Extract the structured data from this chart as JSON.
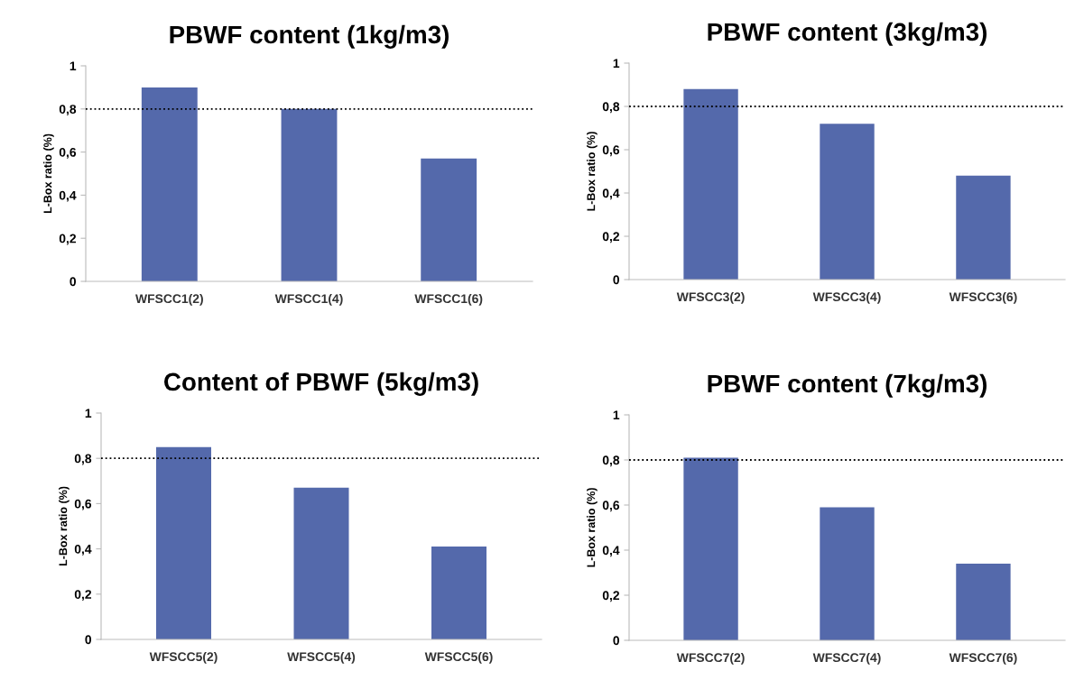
{
  "chart_data": [
    {
      "type": "bar",
      "title": "PBWF content (1kg/m3)",
      "ylabel": "L-Box ratio (%)",
      "categories": [
        "WFSCC1(2)",
        "WFSCC1(4)",
        "WFSCC1(6)"
      ],
      "values": [
        0.9,
        0.8,
        0.57
      ],
      "color": "#5469ab",
      "ylim": [
        0,
        1
      ],
      "yticks": [
        0,
        {
          "value": 0.2,
          "label": "0,2"
        },
        {
          "value": 0.4,
          "label": "0,4"
        },
        {
          "value": 0.6,
          "label": "0,6"
        },
        {
          "value": 0.8,
          "label": "0,8"
        },
        1
      ],
      "grid": false,
      "ref_lines": [
        {
          "axis": "y",
          "value": 0.8,
          "color": "#000000",
          "line_style": "dotted"
        }
      ]
    },
    {
      "type": "bar",
      "title": "PBWF content (3kg/m3)",
      "ylabel": "L-Box ratio (%)",
      "categories": [
        "WFSCC3(2)",
        "WFSCC3(4)",
        "WFSCC3(6)"
      ],
      "values": [
        0.88,
        0.72,
        0.48
      ],
      "color": "#5469ab",
      "ylim": [
        0,
        1
      ],
      "yticks": [
        0,
        {
          "value": 0.2,
          "label": "0,2"
        },
        {
          "value": 0.4,
          "label": "0,4"
        },
        {
          "value": 0.6,
          "label": "0,6"
        },
        {
          "value": 0.8,
          "label": "0,8"
        },
        1
      ],
      "grid": false,
      "ref_lines": [
        {
          "axis": "y",
          "value": 0.8,
          "color": "#000000",
          "line_style": "dotted"
        }
      ]
    },
    {
      "type": "bar",
      "title": "Content of PBWF (5kg/m3)",
      "ylabel": "L-Box ratio (%)",
      "categories": [
        "WFSCC5(2)",
        "WFSCC5(4)",
        "WFSCC5(6)"
      ],
      "values": [
        0.85,
        0.67,
        0.41
      ],
      "color": "#5469ab",
      "ylim": [
        0,
        1
      ],
      "yticks": [
        0,
        {
          "value": 0.2,
          "label": "0,2"
        },
        {
          "value": 0.4,
          "label": "0,4"
        },
        {
          "value": 0.6,
          "label": "0,6"
        },
        {
          "value": 0.8,
          "label": "0,8"
        },
        1
      ],
      "grid": false,
      "ref_lines": [
        {
          "axis": "y",
          "value": 0.8,
          "color": "#000000",
          "line_style": "dotted"
        }
      ]
    },
    {
      "type": "bar",
      "title": "PBWF content (7kg/m3)",
      "ylabel": "L-Box ratio (%)",
      "categories": [
        "WFSCC7(2)",
        "WFSCC7(4)",
        "WFSCC7(6)"
      ],
      "values": [
        0.81,
        0.59,
        0.34
      ],
      "color": "#5469ab",
      "ylim": [
        0,
        1
      ],
      "yticks": [
        0,
        {
          "value": 0.2,
          "label": "0,2"
        },
        {
          "value": 0.4,
          "label": "0,4"
        },
        {
          "value": 0.6,
          "label": "0,6"
        },
        {
          "value": 0.8,
          "label": "0,8"
        },
        1
      ],
      "grid": false,
      "ref_lines": [
        {
          "axis": "y",
          "value": 0.8,
          "color": "#000000",
          "line_style": "dotted"
        }
      ]
    }
  ]
}
